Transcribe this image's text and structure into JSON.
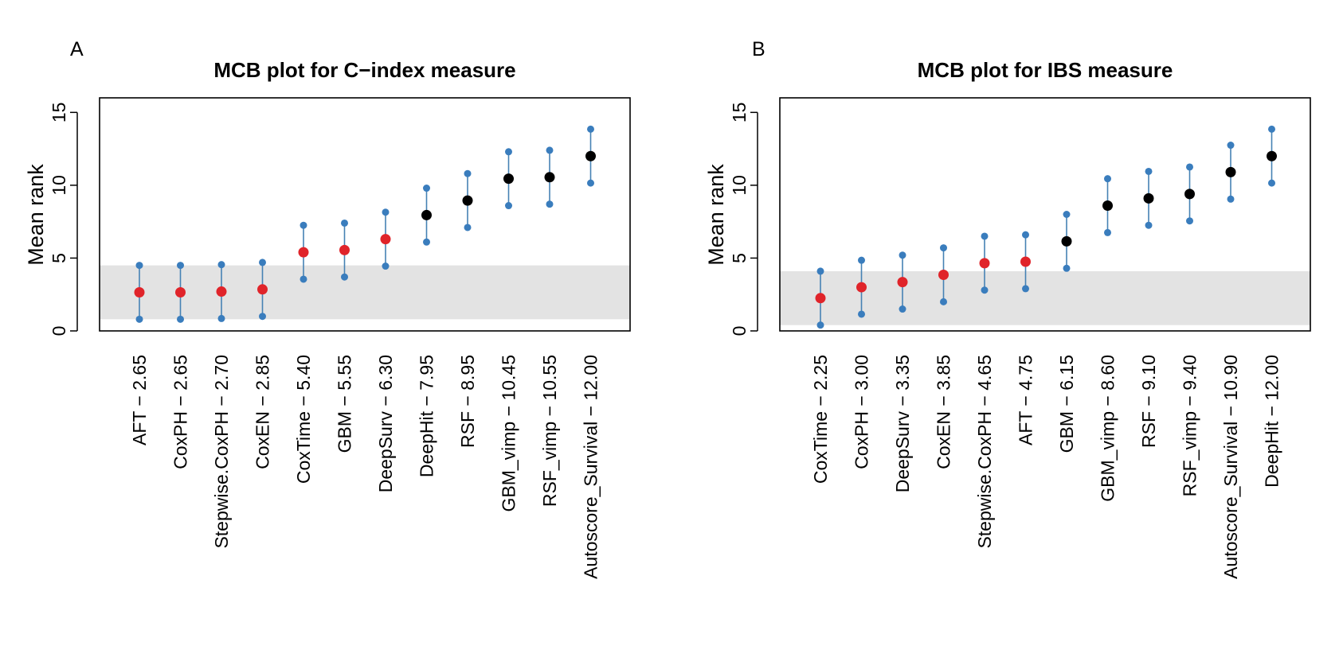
{
  "colors": {
    "band": "#e3e3e3",
    "interval": "#4682b4",
    "endpoint": "#3a7dbd",
    "significant": "#e0242a",
    "nonsignificant": "#000000",
    "axis": "#000000"
  },
  "chart_data": [
    {
      "type": "scatter",
      "panel_label": "A",
      "title": "MCB plot for C−index measure",
      "ylabel": "Mean rank",
      "xlabel": "",
      "ylim": [
        0,
        16
      ],
      "yticks": [
        "0",
        "5",
        "10",
        "15"
      ],
      "grid": false,
      "band": [
        0.8,
        4.5
      ],
      "categories": [
        "AFT − 2.65",
        "CoxPH − 2.65",
        "Stepwise.CoxPH − 2.70",
        "CoxEN − 2.85",
        "CoxTime − 5.40",
        "GBM − 5.55",
        "DeepSurv − 6.30",
        "DeepHit − 7.95",
        "RSF − 8.95",
        "GBM_vimp − 10.45",
        "RSF_vimp − 10.55",
        "Autoscore_Survival − 12.00"
      ],
      "values": [
        2.65,
        2.65,
        2.7,
        2.85,
        5.4,
        5.55,
        6.3,
        7.95,
        8.95,
        10.45,
        10.55,
        12.0
      ],
      "lower": [
        0.8,
        0.8,
        0.85,
        1.0,
        3.55,
        3.7,
        4.45,
        6.1,
        7.1,
        8.6,
        8.7,
        10.15
      ],
      "upper": [
        4.5,
        4.5,
        4.55,
        4.7,
        7.25,
        7.4,
        8.15,
        9.8,
        10.8,
        12.3,
        12.4,
        13.85
      ],
      "significant": [
        true,
        true,
        true,
        true,
        true,
        true,
        true,
        false,
        false,
        false,
        false,
        false
      ]
    },
    {
      "type": "scatter",
      "panel_label": "B",
      "title": "MCB plot for IBS measure",
      "ylabel": "Mean rank",
      "xlabel": "",
      "ylim": [
        0,
        16
      ],
      "yticks": [
        "0",
        "5",
        "10",
        "15"
      ],
      "grid": false,
      "band": [
        0.4,
        4.1
      ],
      "categories": [
        "CoxTime − 2.25",
        "CoxPH − 3.00",
        "DeepSurv − 3.35",
        "CoxEN − 3.85",
        "Stepwise.CoxPH − 4.65",
        "AFT − 4.75",
        "GBM − 6.15",
        "GBM_vimp − 8.60",
        "RSF − 9.10",
        "RSF_vimp − 9.40",
        "Autoscore_Survival − 10.90",
        "DeepHit − 12.00"
      ],
      "values": [
        2.25,
        3.0,
        3.35,
        3.85,
        4.65,
        4.75,
        6.15,
        8.6,
        9.1,
        9.4,
        10.9,
        12.0
      ],
      "lower": [
        0.4,
        1.15,
        1.5,
        2.0,
        2.8,
        2.9,
        4.3,
        6.75,
        7.25,
        7.55,
        9.05,
        10.15
      ],
      "upper": [
        4.1,
        4.85,
        5.2,
        5.7,
        6.5,
        6.6,
        8.0,
        10.45,
        10.95,
        11.25,
        12.75,
        13.85
      ],
      "significant": [
        true,
        true,
        true,
        true,
        true,
        true,
        false,
        false,
        false,
        false,
        false,
        false
      ]
    }
  ]
}
